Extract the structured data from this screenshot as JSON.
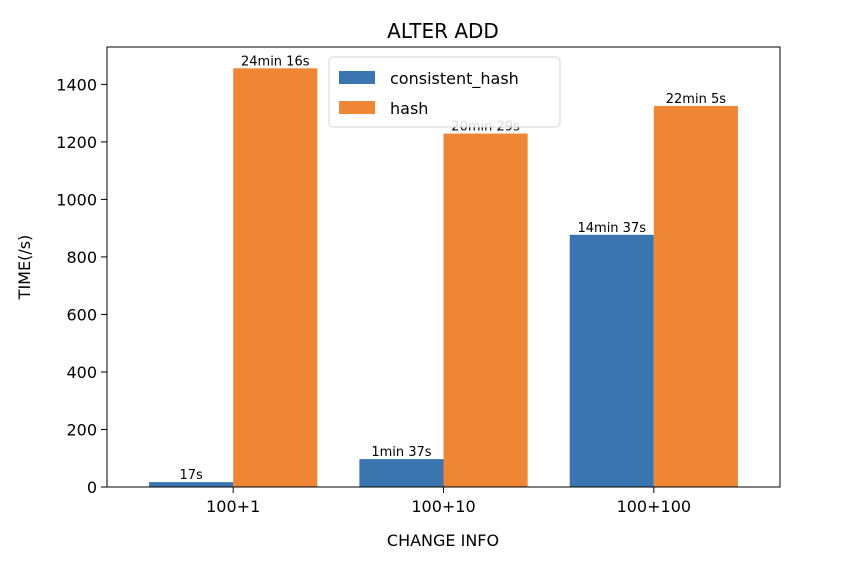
{
  "chart_data": {
    "type": "bar",
    "title": "ALTER ADD",
    "xlabel": "CHANGE INFO",
    "ylabel": "TIME(/s)",
    "categories": [
      "100+1",
      "100+10",
      "100+100"
    ],
    "ylim": [
      0,
      1530
    ],
    "yticks": [
      0,
      200,
      400,
      600,
      800,
      1000,
      1200,
      1400
    ],
    "grid": false,
    "legend": "top-center",
    "series": [
      {
        "name": "consistent_hash",
        "color": "#3a75b0",
        "values": [
          17,
          97,
          877
        ],
        "labels": [
          "17s",
          "1min 37s",
          "14min 37s"
        ]
      },
      {
        "name": "hash",
        "color": "#ef8636",
        "values": [
          1456,
          1229,
          1325
        ],
        "labels": [
          "24min 16s",
          "20min 29s",
          "22min 5s"
        ]
      }
    ]
  }
}
